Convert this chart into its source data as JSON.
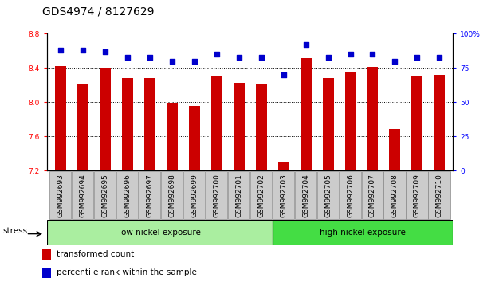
{
  "title": "GDS4974 / 8127629",
  "samples": [
    "GSM992693",
    "GSM992694",
    "GSM992695",
    "GSM992696",
    "GSM992697",
    "GSM992698",
    "GSM992699",
    "GSM992700",
    "GSM992701",
    "GSM992702",
    "GSM992703",
    "GSM992704",
    "GSM992705",
    "GSM992706",
    "GSM992707",
    "GSM992708",
    "GSM992709",
    "GSM992710"
  ],
  "bar_values": [
    8.42,
    8.22,
    8.4,
    8.28,
    8.28,
    7.99,
    7.96,
    8.31,
    8.23,
    8.22,
    7.3,
    8.52,
    8.28,
    8.35,
    8.41,
    7.69,
    8.3,
    8.32
  ],
  "percentile_values": [
    88,
    88,
    87,
    83,
    83,
    80,
    80,
    85,
    83,
    83,
    70,
    92,
    83,
    85,
    85,
    80,
    83,
    83
  ],
  "ylim_left": [
    7.2,
    8.8
  ],
  "ylim_right": [
    0,
    100
  ],
  "yticks_left": [
    7.2,
    7.6,
    8.0,
    8.4,
    8.8
  ],
  "yticks_right": [
    0,
    25,
    50,
    75,
    100
  ],
  "bar_color": "#cc0000",
  "percentile_color": "#0000cc",
  "group1_label": "low nickel exposure",
  "group2_label": "high nickel exposure",
  "group1_count": 10,
  "group2_count": 8,
  "group1_color": "#aaeea0",
  "group2_color": "#44dd44",
  "stress_label": "stress",
  "legend1": "transformed count",
  "legend2": "percentile rank within the sample",
  "bar_width": 0.5,
  "dotted_lines": [
    7.6,
    8.0,
    8.4
  ],
  "title_fontsize": 10,
  "tick_fontsize": 6.5,
  "label_fontsize": 7.5,
  "xtick_gray": "#cccccc",
  "xtick_border": "#888888"
}
